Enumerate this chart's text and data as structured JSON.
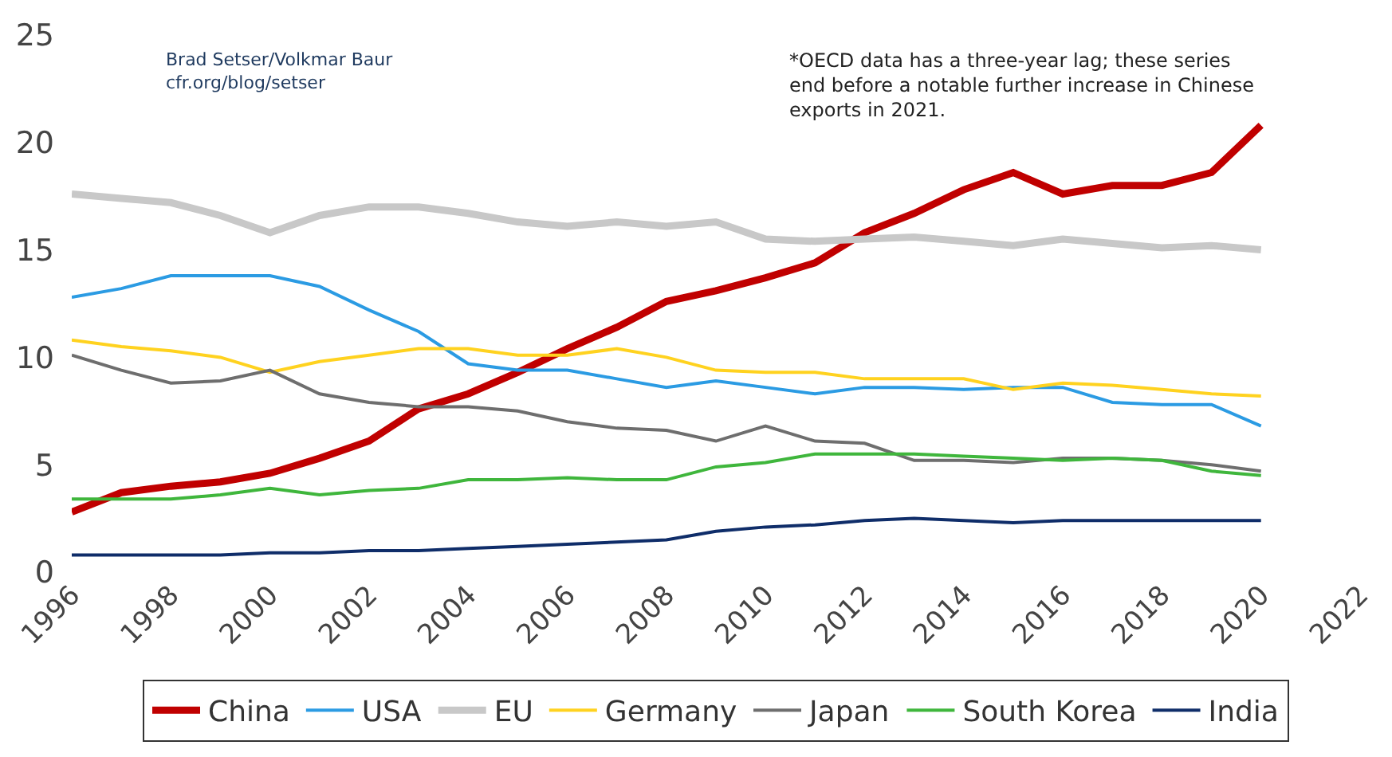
{
  "chart_data": {
    "type": "line",
    "x": [
      1996,
      1997,
      1998,
      1999,
      2000,
      2001,
      2002,
      2003,
      2004,
      2005,
      2006,
      2007,
      2008,
      2009,
      2010,
      2011,
      2012,
      2013,
      2014,
      2015,
      2016,
      2017,
      2018,
      2019,
      2020
    ],
    "series": [
      {
        "name": "China",
        "color": "#c00000",
        "values": [
          2.8,
          3.7,
          4.0,
          4.2,
          4.6,
          5.3,
          6.1,
          7.6,
          8.3,
          9.3,
          10.4,
          11.4,
          12.6,
          13.1,
          13.7,
          14.4,
          15.8,
          16.7,
          17.8,
          18.6,
          17.6,
          18.0,
          18.0,
          18.6,
          20.8
        ]
      },
      {
        "name": "USA",
        "color": "#2b9be3",
        "values": [
          12.8,
          13.2,
          13.8,
          13.8,
          13.8,
          13.3,
          12.2,
          11.2,
          9.7,
          9.4,
          9.4,
          9.0,
          8.6,
          8.9,
          8.6,
          8.3,
          8.6,
          8.6,
          8.5,
          8.6,
          8.6,
          7.9,
          7.8,
          7.8,
          6.8
        ]
      },
      {
        "name": "EU",
        "color": "#c8c8c8",
        "values": [
          17.6,
          17.4,
          17.2,
          16.6,
          15.8,
          16.6,
          17.0,
          17.0,
          16.7,
          16.3,
          16.1,
          16.3,
          16.1,
          16.3,
          15.5,
          15.4,
          15.5,
          15.6,
          15.4,
          15.2,
          15.5,
          15.3,
          15.1,
          15.2,
          15.0
        ]
      },
      {
        "name": "Germany",
        "color": "#ffd21f",
        "values": [
          10.8,
          10.5,
          10.3,
          10.0,
          9.3,
          9.8,
          10.1,
          10.4,
          10.4,
          10.1,
          10.1,
          10.4,
          10.0,
          9.4,
          9.3,
          9.3,
          9.0,
          9.0,
          9.0,
          8.5,
          8.8,
          8.7,
          8.5,
          8.3,
          8.2
        ]
      },
      {
        "name": "Japan",
        "color": "#6e6e6e",
        "values": [
          10.1,
          9.4,
          8.8,
          8.9,
          9.4,
          8.3,
          7.9,
          7.7,
          7.7,
          7.5,
          7.0,
          6.7,
          6.6,
          6.1,
          6.8,
          6.1,
          6.0,
          5.2,
          5.2,
          5.1,
          5.3,
          5.3,
          5.2,
          5.0,
          4.7
        ]
      },
      {
        "name": "South Korea",
        "color": "#3fb63c",
        "values": [
          3.4,
          3.4,
          3.4,
          3.6,
          3.9,
          3.6,
          3.8,
          3.9,
          4.3,
          4.3,
          4.4,
          4.3,
          4.3,
          4.9,
          5.1,
          5.5,
          5.5,
          5.5,
          5.4,
          5.3,
          5.2,
          5.3,
          5.2,
          4.7,
          4.5
        ]
      },
      {
        "name": "India",
        "color": "#0f2d69",
        "values": [
          0.8,
          0.8,
          0.8,
          0.8,
          0.9,
          0.9,
          1.0,
          1.0,
          1.1,
          1.2,
          1.3,
          1.4,
          1.5,
          1.9,
          2.1,
          2.2,
          2.4,
          2.5,
          2.4,
          2.3,
          2.4,
          2.4,
          2.4,
          2.4,
          2.4
        ]
      }
    ],
    "xlim": [
      1996,
      2022
    ],
    "xticks": [
      1996,
      1998,
      2000,
      2002,
      2004,
      2006,
      2008,
      2010,
      2012,
      2014,
      2016,
      2018,
      2020,
      2022
    ],
    "ylim": [
      0,
      25
    ],
    "yticks": [
      0,
      5,
      10,
      15,
      20,
      25
    ],
    "legend": "bottom",
    "marker": "none",
    "line_style": "solid",
    "annotations": [
      "Brad Setser/Volkmar Baur\ncfr.org/blog/setser",
      "*OECD data has a three-year lag; these series\nend before a notable further increase in Chinese\nexports in 2021."
    ]
  }
}
